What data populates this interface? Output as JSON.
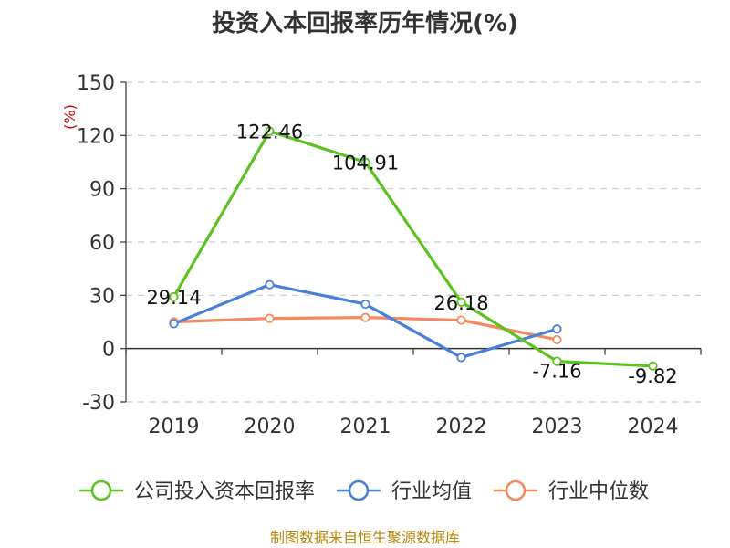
{
  "chart_data": {
    "type": "line",
    "title": "投资入本回报率历年情况(%)",
    "unit_label": "(%)",
    "categories": [
      "2019",
      "2020",
      "2021",
      "2022",
      "2023",
      "2024"
    ],
    "ylim": [
      -30,
      150
    ],
    "yticks": [
      -30,
      0,
      30,
      60,
      90,
      120,
      150
    ],
    "grid": true,
    "legend_position": "bottom",
    "series": [
      {
        "name": "公司投入资本回报率",
        "color": "#5bc21f",
        "values": [
          29.14,
          122.46,
          104.91,
          26.18,
          -7.16,
          -9.82
        ],
        "labels": [
          "29.14",
          "122.46",
          "104.91",
          "26.18",
          "-7.16",
          "-9.82"
        ]
      },
      {
        "name": "行业均值",
        "color": "#4a7fd8",
        "values": [
          14,
          36,
          25,
          -5,
          11,
          null
        ]
      },
      {
        "name": "行业中位数",
        "color": "#f4895f",
        "values": [
          15,
          17,
          17.5,
          16,
          5,
          null
        ]
      }
    ],
    "source": "制图数据来自恒生聚源数据库"
  }
}
